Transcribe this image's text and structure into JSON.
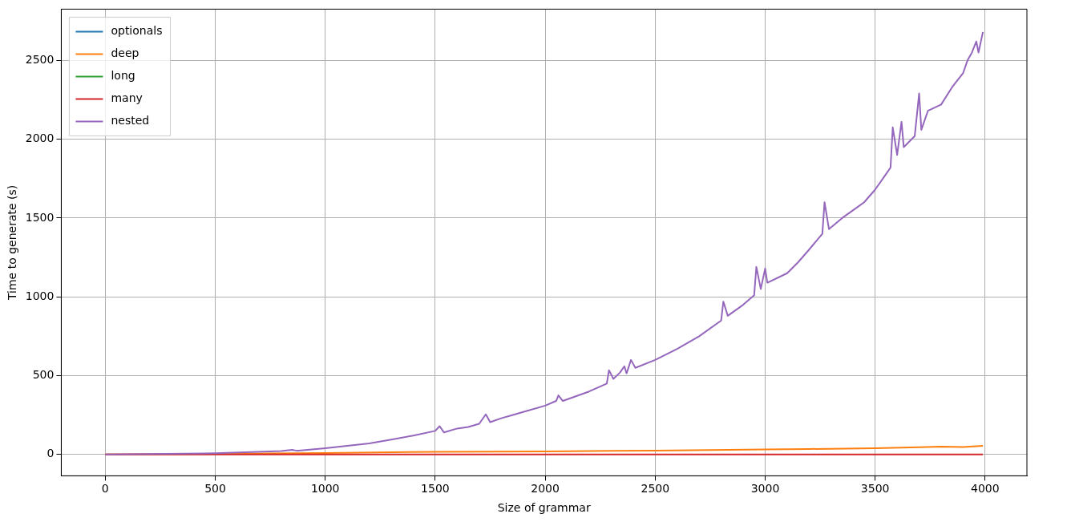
{
  "chart_data": {
    "type": "line",
    "xlabel": "Size of grammar",
    "ylabel": "Time to generate (s)",
    "xlim": [
      -200,
      4190
    ],
    "ylim": [
      -135,
      2825
    ],
    "xticks": [
      0,
      500,
      1000,
      1500,
      2000,
      2500,
      3000,
      3500,
      4000
    ],
    "yticks": [
      0,
      500,
      1000,
      1500,
      2000,
      2500
    ],
    "grid": true,
    "legend": "top left",
    "marker": "none",
    "line_style": "solid",
    "series": [
      {
        "name": "optionals",
        "color": "#1f77b4"
      },
      {
        "name": "deep",
        "color": "#ff7f0e",
        "x": [
          0,
          500,
          1000,
          1500,
          2000,
          2500,
          3000,
          3200,
          3500,
          3700,
          3800,
          3900,
          3990
        ],
        "values": [
          0,
          4,
          10,
          17,
          20,
          25,
          32,
          35,
          40,
          46,
          50,
          48,
          55
        ]
      },
      {
        "name": "long",
        "color": "#2ca02c"
      },
      {
        "name": "many",
        "color": "#d62728",
        "x": [
          0,
          1000,
          2000,
          3000,
          3990
        ],
        "values": [
          0,
          0,
          1,
          1,
          1
        ]
      },
      {
        "name": "nested",
        "color": "#9467bd",
        "x": [
          0,
          500,
          800,
          850,
          870,
          1000,
          1200,
          1300,
          1400,
          1500,
          1520,
          1540,
          1600,
          1650,
          1700,
          1730,
          1750,
          1800,
          1850,
          1900,
          2000,
          2050,
          2060,
          2080,
          2200,
          2280,
          2290,
          2310,
          2340,
          2360,
          2370,
          2390,
          2410,
          2500,
          2600,
          2700,
          2800,
          2810,
          2830,
          2900,
          2950,
          2960,
          2980,
          3000,
          3010,
          3100,
          3150,
          3200,
          3260,
          3270,
          3290,
          3350,
          3400,
          3450,
          3500,
          3550,
          3570,
          3580,
          3600,
          3620,
          3630,
          3680,
          3700,
          3710,
          3740,
          3800,
          3850,
          3900,
          3920,
          3940,
          3960,
          3970,
          3990
        ],
        "values": [
          0,
          8,
          22,
          30,
          24,
          40,
          70,
          95,
          120,
          150,
          180,
          140,
          165,
          175,
          195,
          255,
          205,
          230,
          250,
          270,
          310,
          340,
          375,
          340,
          400,
          450,
          535,
          480,
          520,
          560,
          515,
          600,
          550,
          600,
          670,
          750,
          850,
          970,
          880,
          950,
          1010,
          1190,
          1050,
          1180,
          1090,
          1150,
          1220,
          1300,
          1400,
          1600,
          1430,
          1500,
          1550,
          1600,
          1680,
          1780,
          1820,
          2075,
          1900,
          2110,
          1950,
          2020,
          2290,
          2060,
          2180,
          2220,
          2330,
          2420,
          2500,
          2550,
          2620,
          2550,
          2680
        ]
      }
    ]
  }
}
